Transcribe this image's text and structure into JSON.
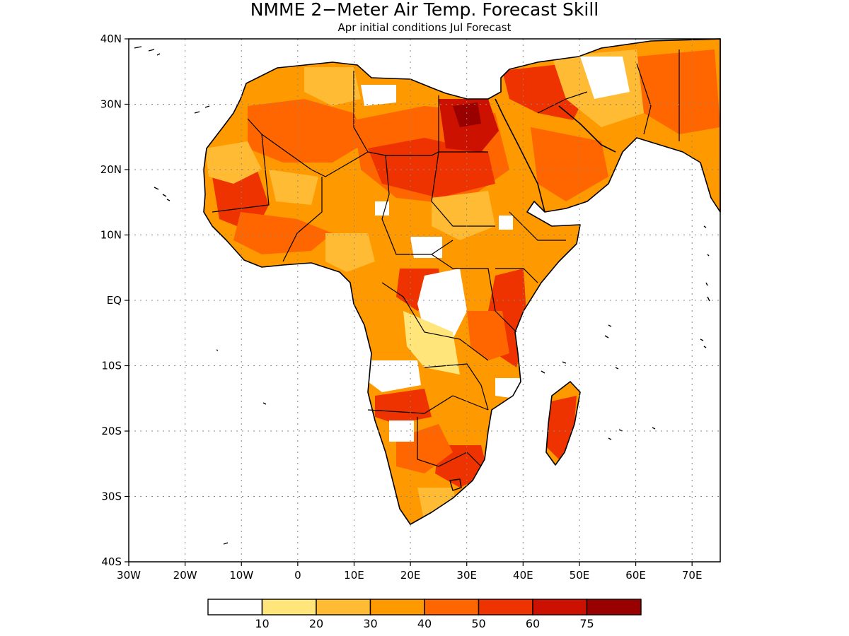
{
  "title": "NMME 2−Meter Air Temp. Forecast Skill",
  "subtitle": "Apr initial conditions  Jul Forecast",
  "map": {
    "lon_range": [
      -30,
      75
    ],
    "lat_range": [
      -40,
      40
    ],
    "lat_labels": [
      {
        "lat": 40,
        "text": "40N"
      },
      {
        "lat": 30,
        "text": "30N"
      },
      {
        "lat": 20,
        "text": "20N"
      },
      {
        "lat": 10,
        "text": "10N"
      },
      {
        "lat": 0,
        "text": "EQ"
      },
      {
        "lat": -10,
        "text": "10S"
      },
      {
        "lat": -20,
        "text": "20S"
      },
      {
        "lat": -30,
        "text": "30S"
      },
      {
        "lat": -40,
        "text": "40S"
      }
    ],
    "lon_labels": [
      {
        "lon": -30,
        "text": "30W"
      },
      {
        "lon": -20,
        "text": "20W"
      },
      {
        "lon": -10,
        "text": "10W"
      },
      {
        "lon": 0,
        "text": "0"
      },
      {
        "lon": 10,
        "text": "10E"
      },
      {
        "lon": 20,
        "text": "20E"
      },
      {
        "lon": 30,
        "text": "30E"
      },
      {
        "lon": 40,
        "text": "40E"
      },
      {
        "lon": 50,
        "text": "50E"
      },
      {
        "lon": 60,
        "text": "60E"
      },
      {
        "lon": 70,
        "text": "70E"
      }
    ],
    "grid": "dotted",
    "land_color": "#ff9900"
  },
  "colorbar": {
    "labels": [
      "10",
      "20",
      "30",
      "40",
      "50",
      "60",
      "75"
    ],
    "colors": [
      "#ffffff",
      "#ffe57a",
      "#ffbb33",
      "#ff9900",
      "#ff6600",
      "#ee3300",
      "#cc1100",
      "#990000"
    ]
  }
}
